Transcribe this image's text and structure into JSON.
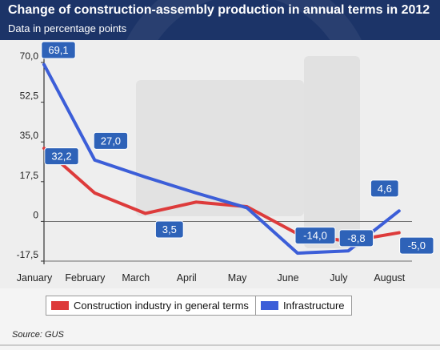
{
  "header": {
    "title": "Change of construction-assembly production in annual terms in 2012",
    "subtitle": "Data in percentage points"
  },
  "colors": {
    "header_bg": "#1c3468",
    "construction": "#dd3b3b",
    "infrastructure": "#3c5ed8",
    "label_bg": "#2e62b8"
  },
  "legend": {
    "items": [
      {
        "label": "Construction industry in general terms",
        "color": "#dd3b3b"
      },
      {
        "label": "Infrastructure",
        "color": "#3c5ed8"
      }
    ]
  },
  "footer": {
    "source": "Source: GUS"
  },
  "chart_data": {
    "type": "line",
    "categories": [
      "January",
      "February",
      "March",
      "April",
      "May",
      "June",
      "July",
      "August"
    ],
    "series": [
      {
        "name": "Construction industry in general terms",
        "values": [
          32.2,
          12.5,
          3.5,
          8.5,
          6.5,
          -5.5,
          -8.8,
          -5.0
        ]
      },
      {
        "name": "Infrastructure",
        "values": [
          69.1,
          27.0,
          19.5,
          12.5,
          6.0,
          -14.0,
          -13.0,
          4.6
        ]
      }
    ],
    "data_labels": [
      {
        "series": 1,
        "index": 0,
        "text": "69,1"
      },
      {
        "series": 1,
        "index": 1,
        "text": "27,0"
      },
      {
        "series": 0,
        "index": 0,
        "text": "32,2"
      },
      {
        "series": 0,
        "index": 2,
        "text": "3,5"
      },
      {
        "series": 1,
        "index": 5,
        "text": "-14,0"
      },
      {
        "series": 0,
        "index": 6,
        "text": "-8,8"
      },
      {
        "series": 1,
        "index": 7,
        "text": "4,6"
      },
      {
        "series": 0,
        "index": 7,
        "text": "-5,0"
      }
    ],
    "yticks": [
      "70,0",
      "52,5",
      "35,0",
      "17,5",
      "0",
      "-17,5"
    ],
    "ytick_values": [
      70,
      52.5,
      35,
      17.5,
      0,
      -17.5
    ],
    "ylim": [
      -17.5,
      70
    ],
    "grid": false,
    "legend_position": "bottom"
  }
}
